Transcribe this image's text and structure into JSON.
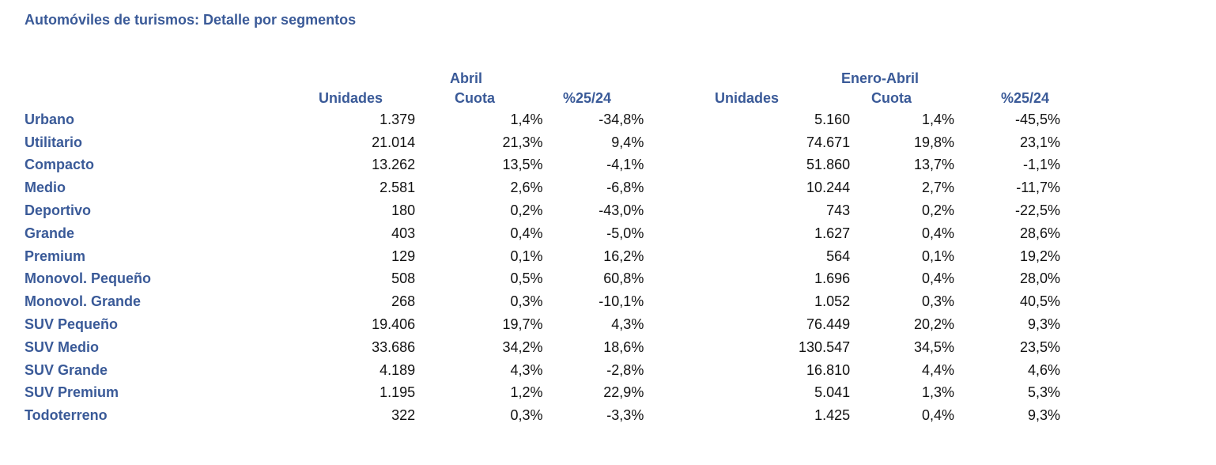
{
  "title": "Automóviles de turismos: Detalle por segmentos",
  "headers": {
    "abril": "Abril",
    "enero_abril": "Enero-Abril",
    "unidades_1": "Unidades",
    "cuota_1": "Cuota",
    "pct_1": "%25/24",
    "unidades_2": "Unidades",
    "cuota_2": "Cuota",
    "pct_2": "%25/24"
  },
  "rows": [
    {
      "segmento": "Urbano",
      "abril_unidades": "1.379",
      "abril_cuota": "1,4%",
      "abril_pct": "-34,8%",
      "ea_unidades": "5.160",
      "ea_cuota": "1,4%",
      "ea_pct": "-45,5%"
    },
    {
      "segmento": "Utilitario",
      "abril_unidades": "21.014",
      "abril_cuota": "21,3%",
      "abril_pct": "9,4%",
      "ea_unidades": "74.671",
      "ea_cuota": "19,8%",
      "ea_pct": "23,1%"
    },
    {
      "segmento": "Compacto",
      "abril_unidades": "13.262",
      "abril_cuota": "13,5%",
      "abril_pct": "-4,1%",
      "ea_unidades": "51.860",
      "ea_cuota": "13,7%",
      "ea_pct": "-1,1%"
    },
    {
      "segmento": "Medio",
      "abril_unidades": "2.581",
      "abril_cuota": "2,6%",
      "abril_pct": "-6,8%",
      "ea_unidades": "10.244",
      "ea_cuota": "2,7%",
      "ea_pct": "-11,7%"
    },
    {
      "segmento": "Deportivo",
      "abril_unidades": "180",
      "abril_cuota": "0,2%",
      "abril_pct": "-43,0%",
      "ea_unidades": "743",
      "ea_cuota": "0,2%",
      "ea_pct": "-22,5%"
    },
    {
      "segmento": "Grande",
      "abril_unidades": "403",
      "abril_cuota": "0,4%",
      "abril_pct": "-5,0%",
      "ea_unidades": "1.627",
      "ea_cuota": "0,4%",
      "ea_pct": "28,6%"
    },
    {
      "segmento": "Premium",
      "abril_unidades": "129",
      "abril_cuota": "0,1%",
      "abril_pct": "16,2%",
      "ea_unidades": "564",
      "ea_cuota": "0,1%",
      "ea_pct": "19,2%"
    },
    {
      "segmento": "Monovol. Pequeño",
      "abril_unidades": "508",
      "abril_cuota": "0,5%",
      "abril_pct": "60,8%",
      "ea_unidades": "1.696",
      "ea_cuota": "0,4%",
      "ea_pct": "28,0%"
    },
    {
      "segmento": "Monovol. Grande",
      "abril_unidades": "268",
      "abril_cuota": "0,3%",
      "abril_pct": "-10,1%",
      "ea_unidades": "1.052",
      "ea_cuota": "0,3%",
      "ea_pct": "40,5%"
    },
    {
      "segmento": "SUV Pequeño",
      "abril_unidades": "19.406",
      "abril_cuota": "19,7%",
      "abril_pct": "4,3%",
      "ea_unidades": "76.449",
      "ea_cuota": "20,2%",
      "ea_pct": "9,3%"
    },
    {
      "segmento": "SUV Medio",
      "abril_unidades": "33.686",
      "abril_cuota": "34,2%",
      "abril_pct": "18,6%",
      "ea_unidades": "130.547",
      "ea_cuota": "34,5%",
      "ea_pct": "23,5%"
    },
    {
      "segmento": "SUV Grande",
      "abril_unidades": "4.189",
      "abril_cuota": "4,3%",
      "abril_pct": "-2,8%",
      "ea_unidades": "16.810",
      "ea_cuota": "4,4%",
      "ea_pct": "4,6%"
    },
    {
      "segmento": "SUV Premium",
      "abril_unidades": "1.195",
      "abril_cuota": "1,2%",
      "abril_pct": "22,9%",
      "ea_unidades": "5.041",
      "ea_cuota": "1,3%",
      "ea_pct": "5,3%"
    },
    {
      "segmento": "Todoterreno",
      "abril_unidades": "322",
      "abril_cuota": "0,3%",
      "abril_pct": "-3,3%",
      "ea_unidades": "1.425",
      "ea_cuota": "0,4%",
      "ea_pct": "9,3%"
    }
  ]
}
